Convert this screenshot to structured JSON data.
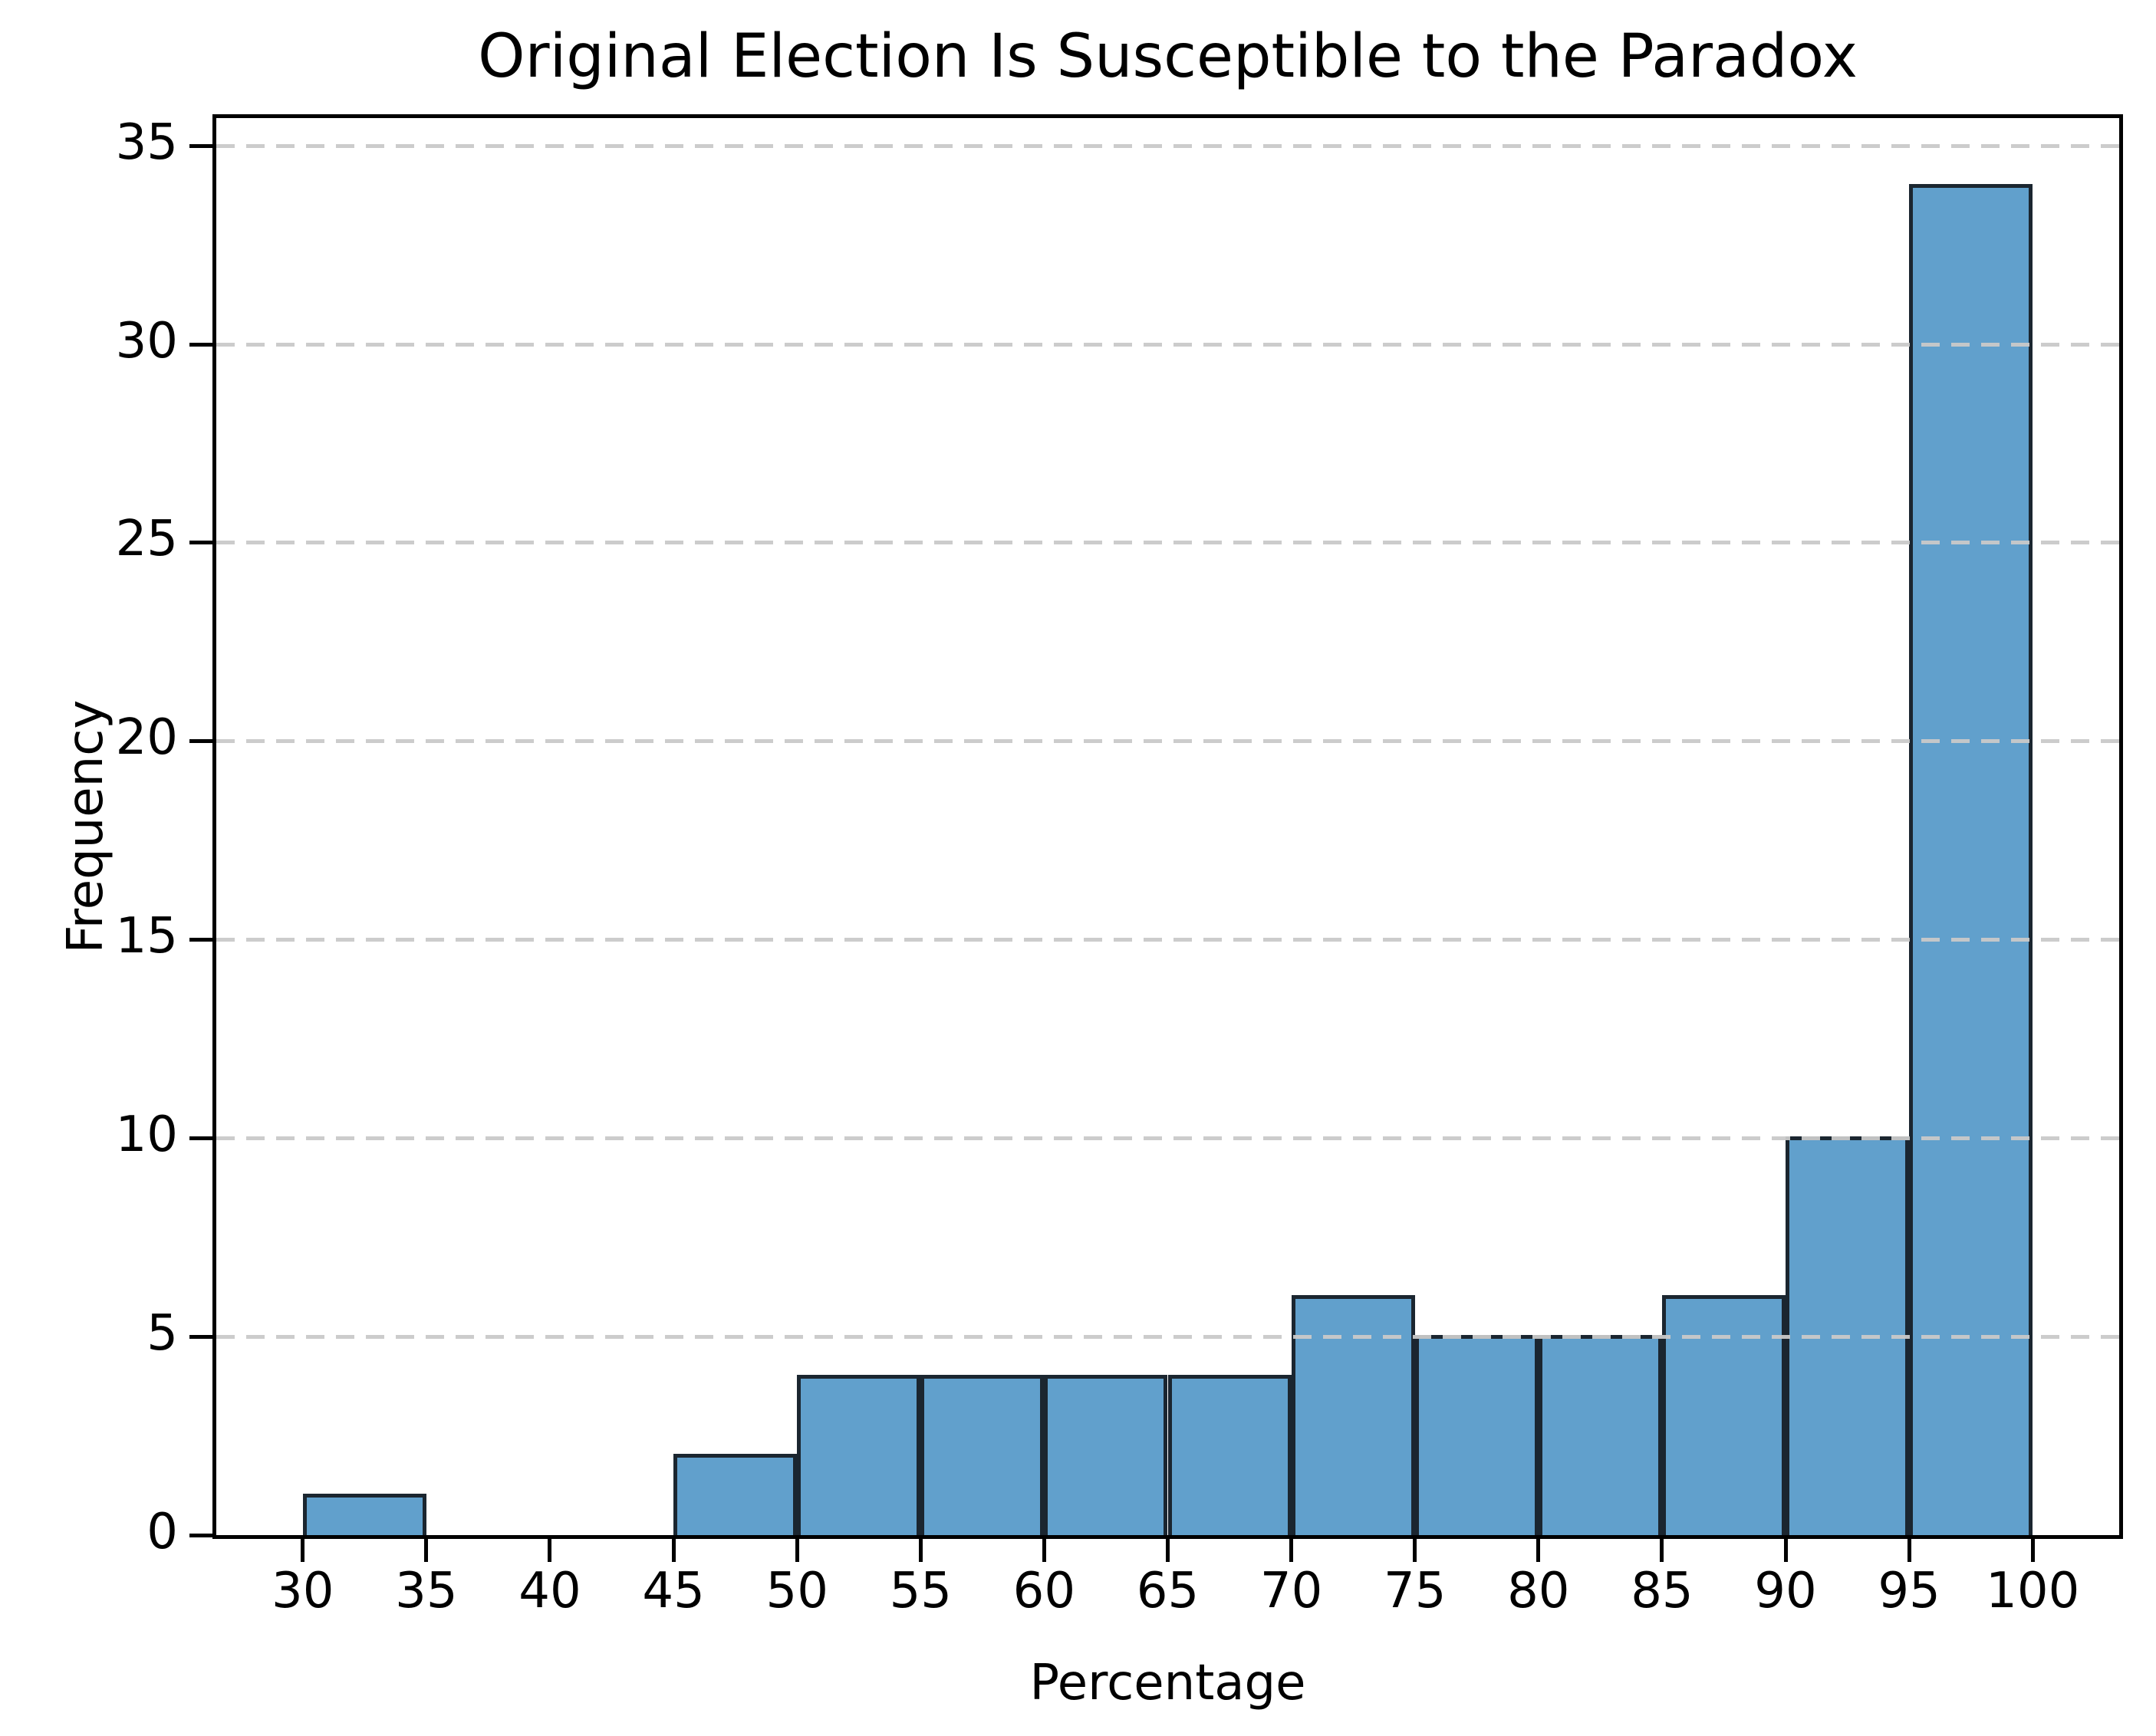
{
  "figure": {
    "background": "#ffffff"
  },
  "chart_data": {
    "type": "bar",
    "subtype": "histogram",
    "title": "Original Election Is Susceptible to the Paradox",
    "xlabel": "Percentage",
    "ylabel": "Frequency",
    "bin_edges": [
      30,
      35,
      40,
      45,
      50,
      55,
      60,
      65,
      70,
      75,
      80,
      85,
      90,
      95,
      100
    ],
    "values": [
      1,
      0,
      0,
      2,
      4,
      4,
      4,
      4,
      6,
      5,
      5,
      6,
      10,
      34
    ],
    "xticks": [
      30,
      35,
      40,
      45,
      50,
      55,
      60,
      65,
      70,
      75,
      80,
      85,
      90,
      95,
      100
    ],
    "yticks": [
      0,
      5,
      10,
      15,
      20,
      25,
      30,
      35
    ],
    "xlim": [
      26.5,
      103.5
    ],
    "ylim": [
      0,
      35.7
    ],
    "grid": {
      "axis": "y",
      "style": "dashed",
      "color": "#c9c9c9",
      "drawn_above_bars": true
    },
    "colors": {
      "bar_fill": "#61A0CC",
      "bar_edge": "#1b2630",
      "axis": "#000000",
      "text": "#000000",
      "background": "#ffffff"
    }
  }
}
